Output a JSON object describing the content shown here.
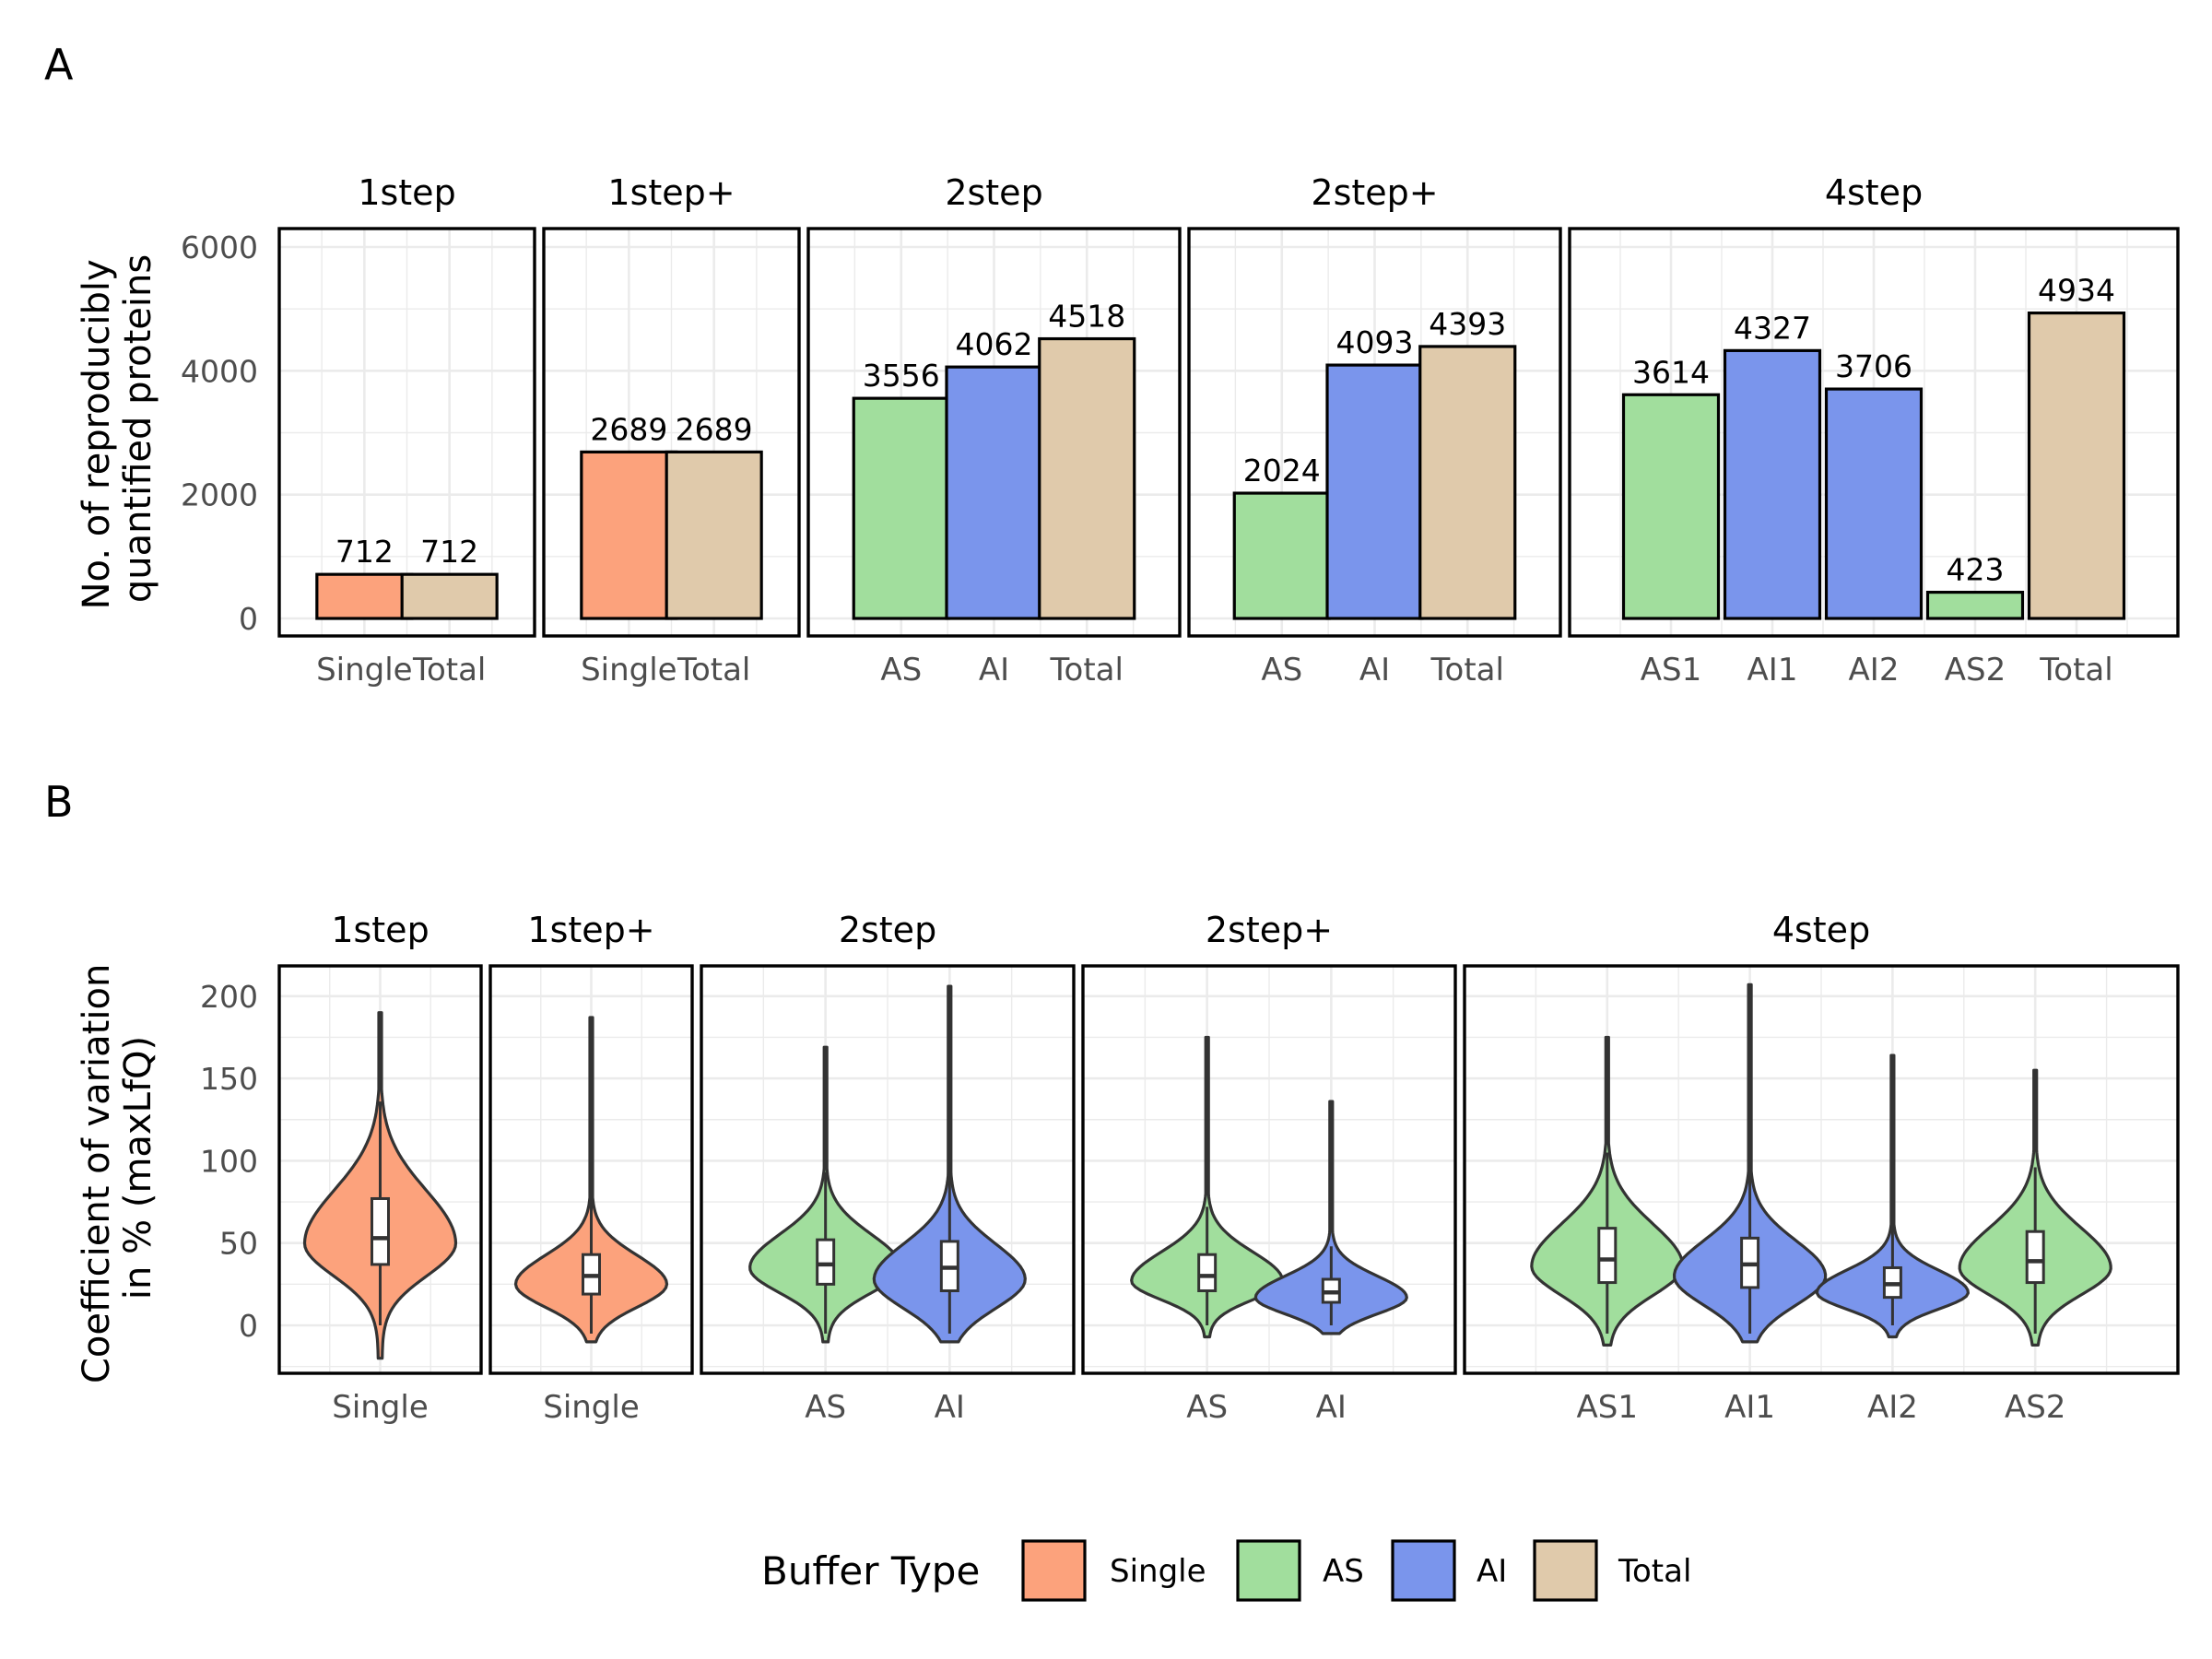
{
  "colors": {
    "Single": "#FCA27C",
    "AS": "#A1DE9D",
    "AI": "#7A95EC",
    "Total": "#E0CAAB",
    "grid": "#EBEBEB",
    "text": "#000000",
    "tick_text": "#4D4D4D"
  },
  "chart_data": [
    {
      "type": "bar",
      "panel_label": "A",
      "ylabel_lines": [
        "No. of reproducibly",
        "quantified proteins"
      ],
      "xlabel": "",
      "ylim": [
        0,
        6000
      ],
      "yticks": [
        0,
        2000,
        4000,
        6000
      ],
      "grid": true,
      "facets": [
        {
          "name": "1step",
          "bars": [
            {
              "category": "Single",
              "type": "Single",
              "value": 712
            },
            {
              "category": "Total",
              "type": "Total",
              "value": 712
            }
          ]
        },
        {
          "name": "1step+",
          "bars": [
            {
              "category": "Single",
              "type": "Single",
              "value": 2689
            },
            {
              "category": "Total",
              "type": "Total",
              "value": 2689
            }
          ]
        },
        {
          "name": "2step",
          "bars": [
            {
              "category": "AS",
              "type": "AS",
              "value": 3556
            },
            {
              "category": "AI",
              "type": "AI",
              "value": 4062
            },
            {
              "category": "Total",
              "type": "Total",
              "value": 4518
            }
          ]
        },
        {
          "name": "2step+",
          "bars": [
            {
              "category": "AS",
              "type": "AS",
              "value": 2024
            },
            {
              "category": "AI",
              "type": "AI",
              "value": 4093
            },
            {
              "category": "Total",
              "type": "Total",
              "value": 4393
            }
          ]
        },
        {
          "name": "4step",
          "bars": [
            {
              "category": "AS1",
              "type": "AS",
              "value": 3614
            },
            {
              "category": "AI1",
              "type": "AI",
              "value": 4327
            },
            {
              "category": "AI2",
              "type": "AI",
              "value": 3706
            },
            {
              "category": "AS2",
              "type": "AS",
              "value": 423
            },
            {
              "category": "Total",
              "type": "Total",
              "value": 4934
            }
          ]
        }
      ]
    },
    {
      "type": "violin",
      "panel_label": "B",
      "ylabel_lines": [
        "Coefficient of variation",
        "in % (maxLfQ)"
      ],
      "xlabel": "",
      "ylim": [
        -30,
        220
      ],
      "yticks": [
        0,
        50,
        100,
        150,
        200
      ],
      "grid": true,
      "facets": [
        {
          "name": "1step",
          "violins": [
            {
              "category": "Single",
              "type": "Single",
              "min": -20,
              "max": 190,
              "q1": 37,
              "median": 53,
              "q3": 77,
              "whisker_low": 0,
              "whisker_high": 136,
              "mode": 50
            }
          ]
        },
        {
          "name": "1step+",
          "violins": [
            {
              "category": "Single",
              "type": "Single",
              "min": -10,
              "max": 187,
              "q1": 19,
              "median": 30,
              "q3": 43,
              "whisker_low": -5,
              "whisker_high": 80,
              "mode": 25
            }
          ]
        },
        {
          "name": "2step",
          "violins": [
            {
              "category": "AS",
              "type": "AS",
              "min": -10,
              "max": 169,
              "q1": 25,
              "median": 37,
              "q3": 52,
              "whisker_low": -5,
              "whisker_high": 93,
              "mode": 35
            },
            {
              "category": "AI",
              "type": "AI",
              "min": -10,
              "max": 206,
              "q1": 21,
              "median": 35,
              "q3": 51,
              "whisker_low": -5,
              "whisker_high": 96,
              "mode": 28
            }
          ]
        },
        {
          "name": "2step+",
          "violins": [
            {
              "category": "AS",
              "type": "AS",
              "min": -7,
              "max": 175,
              "q1": 21,
              "median": 30,
              "q3": 43,
              "whisker_low": 0,
              "whisker_high": 72,
              "mode": 27
            },
            {
              "category": "AI",
              "type": "AI",
              "min": -5,
              "max": 136,
              "q1": 14,
              "median": 20,
              "q3": 28,
              "whisker_low": 0,
              "whisker_high": 48,
              "mode": 17
            }
          ]
        },
        {
          "name": "4step",
          "violins": [
            {
              "category": "AS1",
              "type": "AS",
              "min": -12,
              "max": 175,
              "q1": 26,
              "median": 40,
              "q3": 59,
              "whisker_low": -5,
              "whisker_high": 105,
              "mode": 36
            },
            {
              "category": "AI1",
              "type": "AI",
              "min": -10,
              "max": 207,
              "q1": 23,
              "median": 37,
              "q3": 53,
              "whisker_low": -5,
              "whisker_high": 97,
              "mode": 30
            },
            {
              "category": "AI2",
              "type": "AI",
              "min": -7,
              "max": 164,
              "q1": 17,
              "median": 25,
              "q3": 35,
              "whisker_low": 0,
              "whisker_high": 62,
              "mode": 20
            },
            {
              "category": "AS2",
              "type": "AS",
              "min": -12,
              "max": 155,
              "q1": 26,
              "median": 39,
              "q3": 57,
              "whisker_low": -5,
              "whisker_high": 96,
              "mode": 35
            }
          ]
        }
      ]
    }
  ],
  "legend": {
    "title": "Buffer Type",
    "items": [
      {
        "label": "Single",
        "type": "Single"
      },
      {
        "label": "AS",
        "type": "AS"
      },
      {
        "label": "AI",
        "type": "AI"
      },
      {
        "label": "Total",
        "type": "Total"
      }
    ]
  }
}
